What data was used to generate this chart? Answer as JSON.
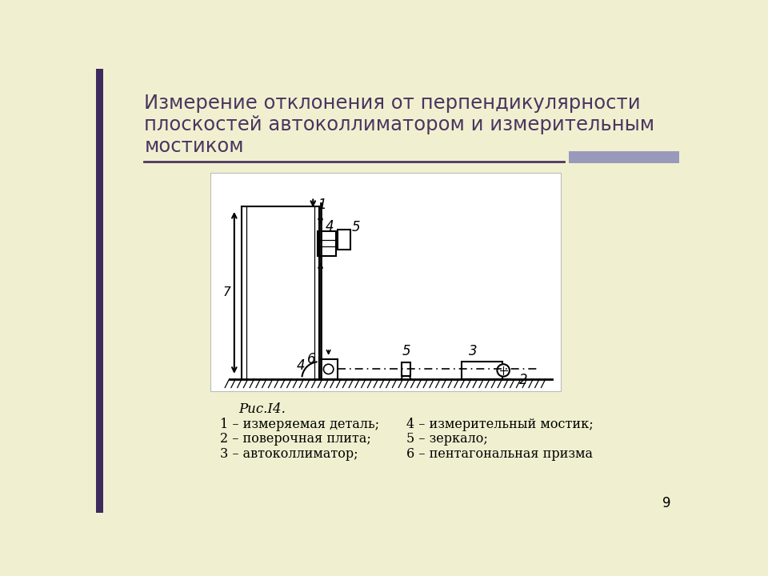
{
  "title_line1": "Измерение отклонения от перпендикулярности",
  "title_line2": "плоскостей автоколлиматором и измерительным",
  "title_line3": "мостиком",
  "title_color": "#4a3560",
  "bg_color": "#f0f0d0",
  "diagram_bg": "#ffffff",
  "fig_caption": "Рис.I4.",
  "legend_left": [
    "1 – измеряемая деталь;",
    "2 – поверочная плита;",
    "3 – автоколлиматор;"
  ],
  "legend_right": [
    "4 – измерительный мостик;",
    "5 – зеркало;",
    "6 – пентагональная призма"
  ],
  "page_number": "9",
  "line_color": "#000000",
  "accent_bar_color": "#9999bb",
  "left_bar_color": "#3d2b5e"
}
